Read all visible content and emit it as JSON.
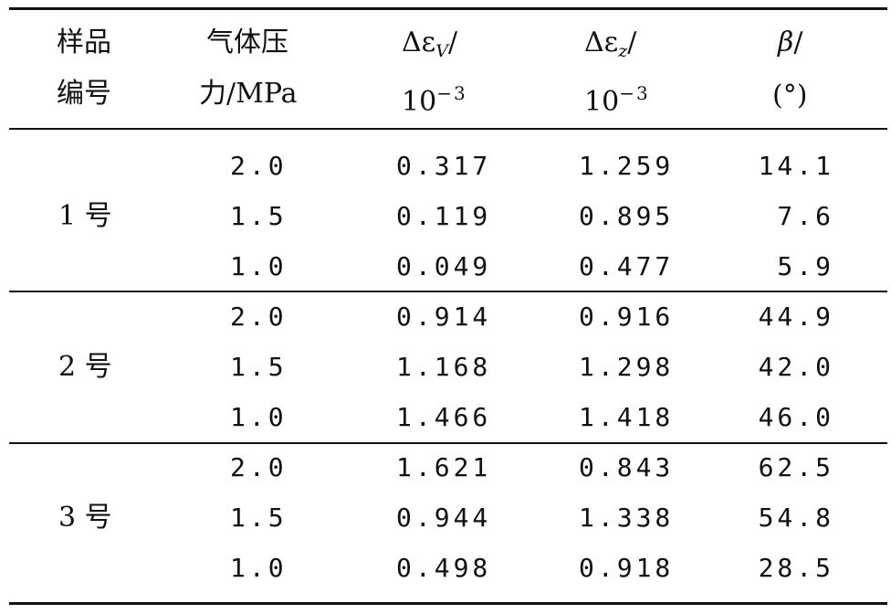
{
  "table": {
    "headers": {
      "sample_line1": "样品",
      "sample_line2": "编号",
      "pressure_line1": "气体压",
      "pressure_line2": "力/MPa",
      "dev_symbol": "Δε",
      "dev_sub": "V",
      "dez_symbol": "Δε",
      "dez_sub": "z",
      "slash": "/",
      "scale_base": "10",
      "scale_exp": "−3",
      "beta_symbol": "β",
      "beta_unit": "(°)"
    },
    "groups": [
      {
        "label": "1 号",
        "rows": [
          {
            "pressure": "2.0",
            "dev": "0.317",
            "dez": "1.259",
            "beta": "14.1"
          },
          {
            "pressure": "1.5",
            "dev": "0.119",
            "dez": "0.895",
            "beta": "7.6"
          },
          {
            "pressure": "1.0",
            "dev": "0.049",
            "dez": "0.477",
            "beta": "5.9"
          }
        ]
      },
      {
        "label": "2 号",
        "rows": [
          {
            "pressure": "2.0",
            "dev": "0.914",
            "dez": "0.916",
            "beta": "44.9"
          },
          {
            "pressure": "1.5",
            "dev": "1.168",
            "dez": "1.298",
            "beta": "42.0"
          },
          {
            "pressure": "1.0",
            "dev": "1.466",
            "dez": "1.418",
            "beta": "46.0"
          }
        ]
      },
      {
        "label": "3 号",
        "rows": [
          {
            "pressure": "2.0",
            "dev": "1.621",
            "dez": "0.843",
            "beta": "62.5"
          },
          {
            "pressure": "1.5",
            "dev": "0.944",
            "dez": "1.338",
            "beta": "54.8"
          },
          {
            "pressure": "1.0",
            "dev": "0.498",
            "dez": "0.918",
            "beta": "28.5"
          }
        ]
      }
    ]
  }
}
